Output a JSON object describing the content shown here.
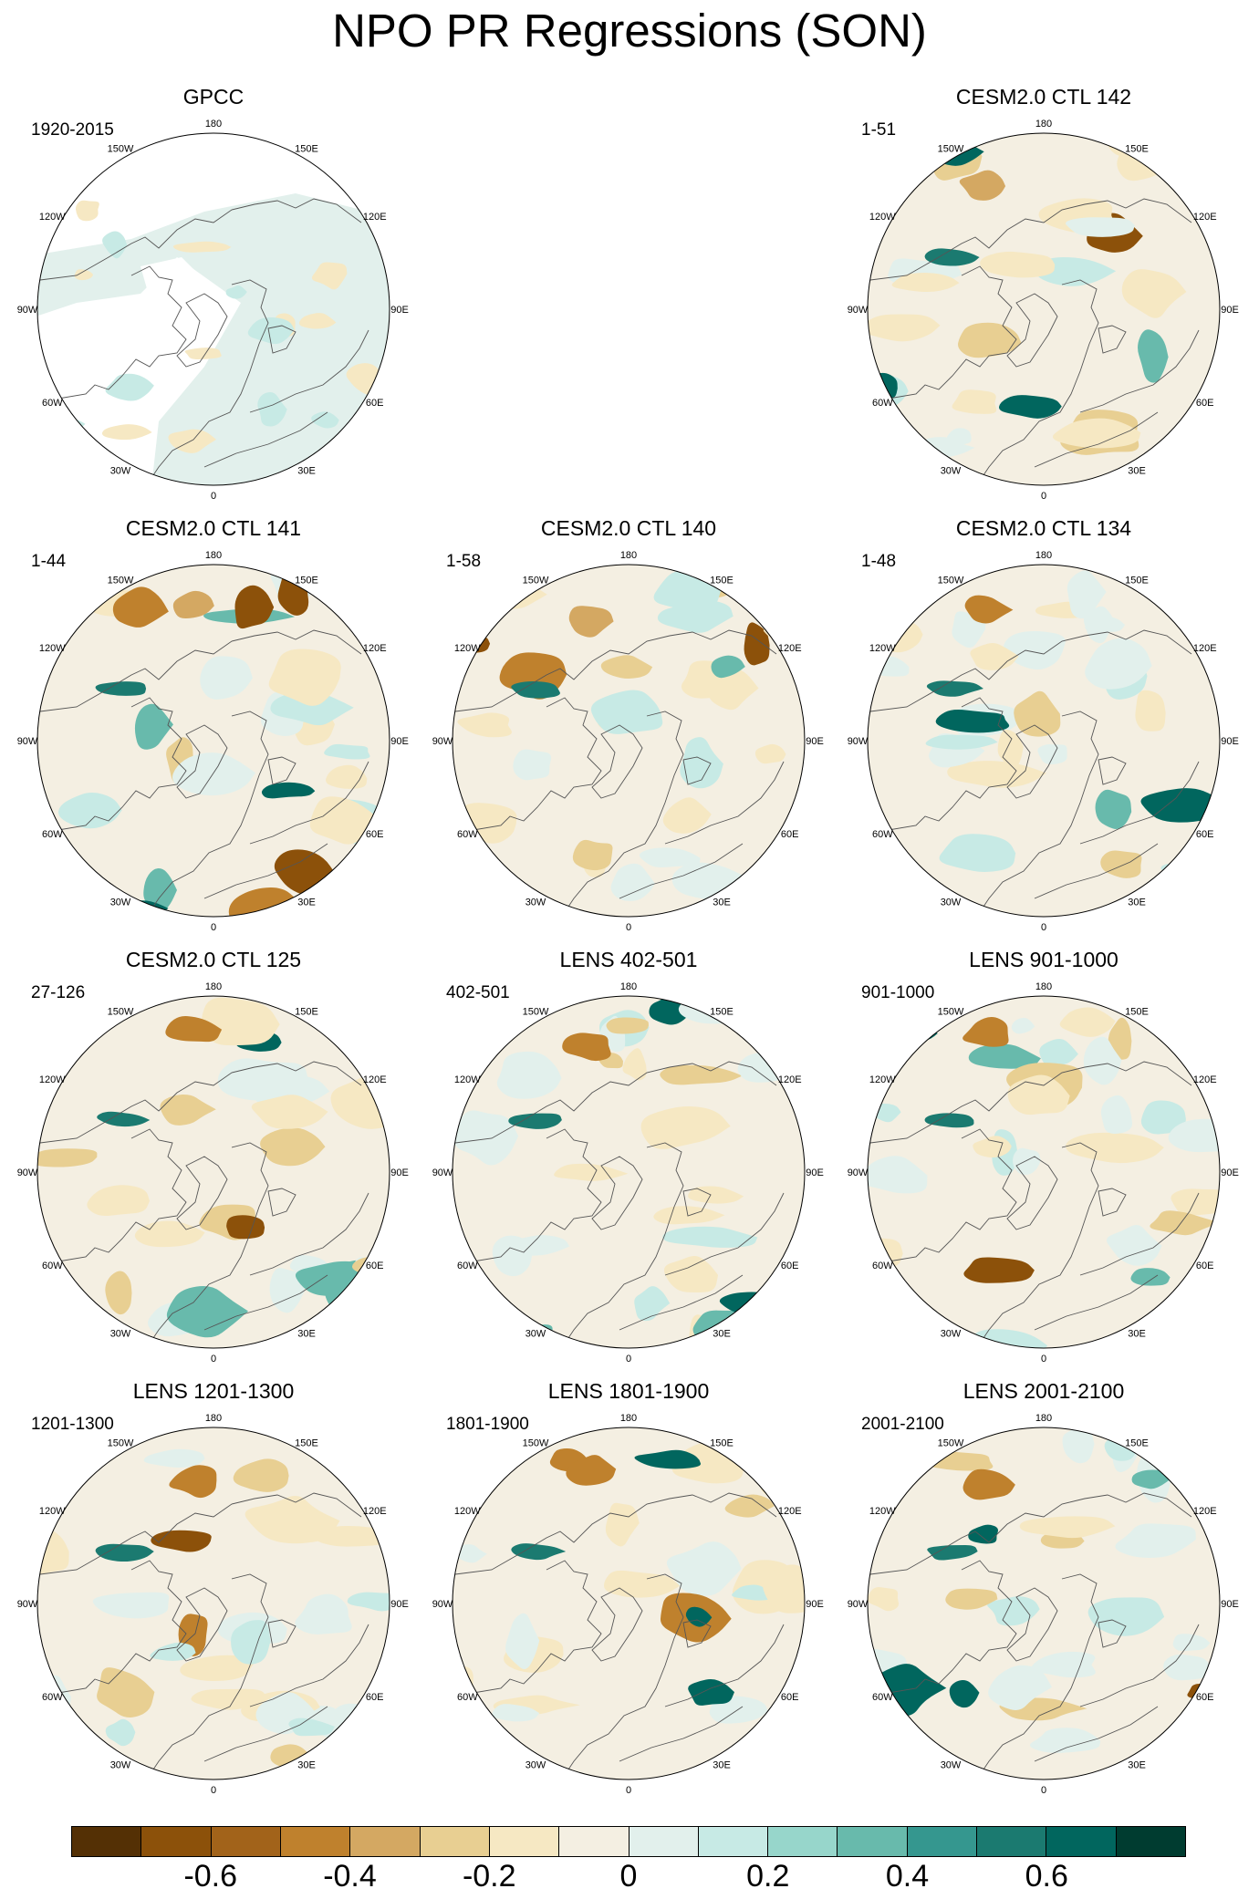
{
  "title": "NPO PR Regressions (SON)",
  "longitude_labels": [
    "180",
    "150E",
    "120E",
    "90E",
    "60E",
    "30E",
    "0",
    "30W",
    "60W",
    "90W",
    "120W",
    "150W"
  ],
  "panels": [
    {
      "title": "GPCC",
      "years": "1920-2015",
      "style": "obs"
    },
    {
      "title": "CESM2.0 CTL 142",
      "years": "1-51",
      "style": "model"
    },
    {
      "title": "CESM2.0 CTL 141",
      "years": "1-44",
      "style": "model"
    },
    {
      "title": "CESM2.0 CTL 140",
      "years": "1-58",
      "style": "model"
    },
    {
      "title": "CESM2.0 CTL 134",
      "years": "1-48",
      "style": "model"
    },
    {
      "title": "CESM2.0 CTL 125",
      "years": "27-126",
      "style": "model"
    },
    {
      "title": "LENS 402-501",
      "years": "402-501",
      "style": "model"
    },
    {
      "title": "LENS 901-1000",
      "years": "901-1000",
      "style": "model"
    },
    {
      "title": "LENS 1201-1300",
      "years": "1201-1300",
      "style": "model"
    },
    {
      "title": "LENS 1801-1900",
      "years": "1801-1900",
      "style": "model"
    },
    {
      "title": "LENS 2001-2100",
      "years": "2001-2100",
      "style": "model"
    }
  ],
  "colorbar": {
    "colors": [
      "#543005",
      "#8c510a",
      "#a2631a",
      "#bf812d",
      "#d4a862",
      "#e8cf92",
      "#f6e8c3",
      "#f4efe2",
      "#e2f0ec",
      "#c7eae5",
      "#97d6cb",
      "#68baac",
      "#35978f",
      "#1b7a70",
      "#01665e",
      "#003c30"
    ],
    "tick_labels": [
      "-0.6",
      "-0.4",
      "-0.2",
      "0",
      "0.2",
      "0.4",
      "0.6"
    ],
    "tick_values": [
      -0.6,
      -0.4,
      -0.2,
      0,
      0.2,
      0.4,
      0.6
    ],
    "range": [
      -0.8,
      0.8
    ]
  }
}
